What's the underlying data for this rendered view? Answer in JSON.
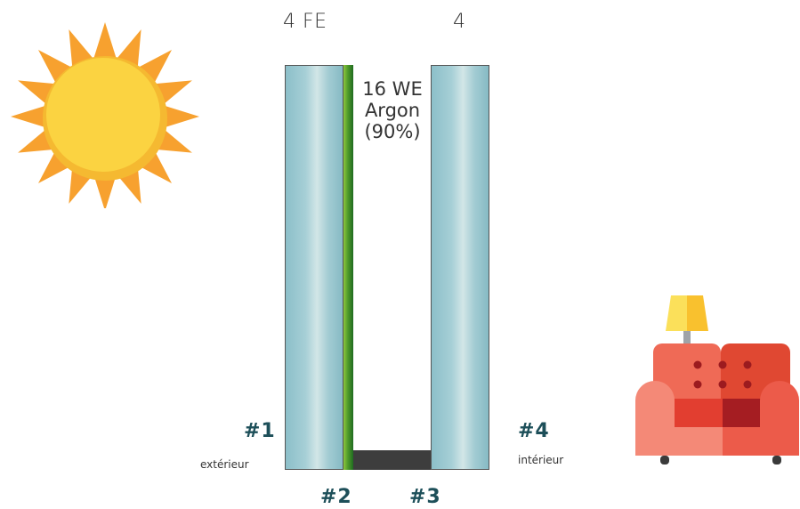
{
  "panes": {
    "outer_label": "4 FE",
    "inner_label": "4"
  },
  "gap": {
    "line1": "16 WE",
    "line2": "Argon",
    "line3": "(90%)"
  },
  "faces": {
    "f1": "#1",
    "f2": "#2",
    "f3": "#3",
    "f4": "#4"
  },
  "sides": {
    "exterior": "extérieur",
    "interior": "intérieur"
  },
  "icons": {
    "sun": "sun-icon",
    "armchair": "armchair-with-lamp-icon"
  },
  "colors": {
    "glass": "#a6cfd6",
    "coating": "#4f9a2a",
    "spacer": "#3d3d3d",
    "face_label": "#1d4f59",
    "sun": "#fbd341",
    "sun_rays": "#f7a12f",
    "armchair": "#ec5b4a"
  }
}
